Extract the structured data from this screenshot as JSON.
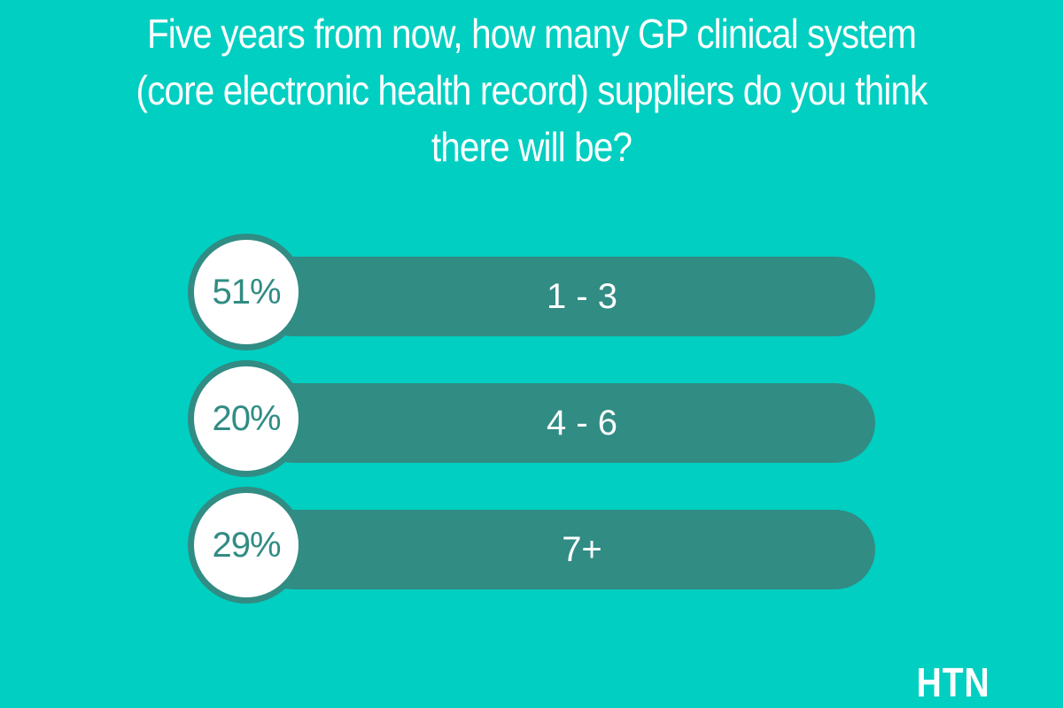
{
  "chart_data": {
    "type": "bar",
    "title": "Five years from now, how many GP clinical system (core electronic health record) suppliers do you think there will be?",
    "categories": [
      "1 - 3",
      "4 - 6",
      "7+"
    ],
    "values": [
      51,
      20,
      29
    ],
    "value_labels": [
      "51%",
      "20%",
      "29%"
    ],
    "unit": "%"
  },
  "colors": {
    "background": "#00CFC1",
    "bar": "#318C84",
    "circle_fill": "#FFFFFF",
    "text_light": "#FFFFFF",
    "text_dark": "#318C84"
  },
  "logo": {
    "text": "HTN"
  }
}
